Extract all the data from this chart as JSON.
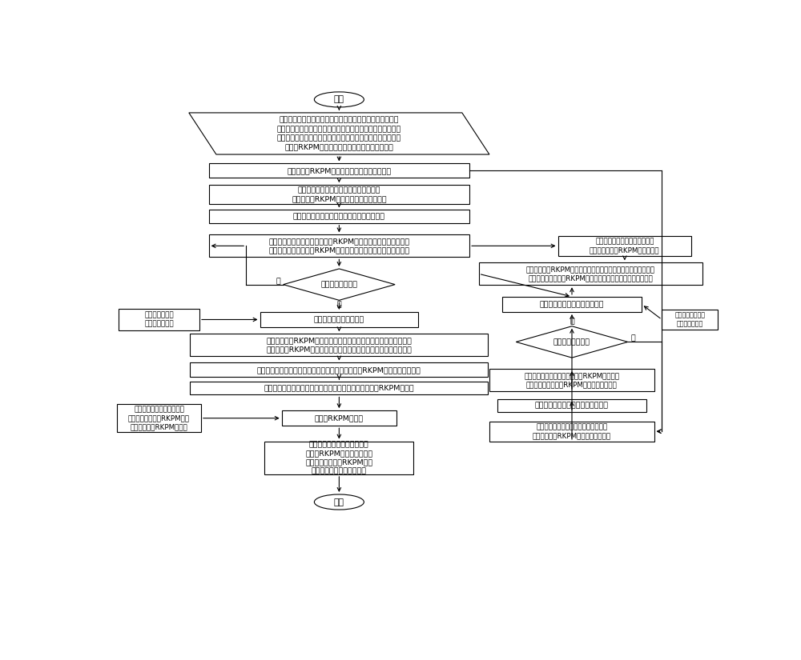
{
  "bg_color": "#ffffff",
  "border_color": "#000000",
  "text_color": "#000000",
  "fig_width": 10.0,
  "fig_height": 8.25,
  "font_size": 6.8,
  "start_text": "开始",
  "end_text": "结束",
  "input_text": "输入各向异性材料属性（主导热系数、主弹性模量、主泊松\n比、剪切模量、主热膨胀系数、热导率正交各向异性因子、热\n膨胀正交各向异性因子、主次泊松比因子、材料方向角等）、\n无网格RKPM计算模型的离散节点信息和边界条件",
  "gen_gauss_text": "生成无网格RKPM积分背景网格并求高斯点信息",
  "find_nodes_disp_text": "找出高斯点影响域内的节点，并利用可视\n性准则处理RKPM热变形位移场的非连续性",
  "calc_shape_disp_text": "计算热变形位移的重构核近似形函数及其导数",
  "build_stiffness_text": "建立各向异性材料结构的无网格RKPM力刚度矩阵和温差载荷列向\n量，并在影响域内完成RKPM力刚度矩阵和温差载荷列向量的组装",
  "diamond_disp_text": "高斯点是否遍历完",
  "penalty_disp_text": "罚函数法处理位\n移本质边界条件",
  "apply_bc_text": "施加力边界条件和力载荷",
  "solve_disp_text": "组建系统总的RKPM力刚度矩阵和力载荷列向量，建立各向异性材料\n结构无网格RKPM热应力离散控制方程并求解节点热变形位移参数值",
  "recover_disp_text": "用各节点影响域内的节点热变形位移参数值求节点的RKPM真实热变形位移值",
  "calc_stress_gauss_text": "用各高斯点影响域内的节点热变形位移参数值求高斯点的RKPM应力值",
  "search_fit_text": "逐个搜索节点影响域内的高\n斯点，用高斯点的RKPM应力\n值拟合节点的RKPM应力值",
  "node_stress_text": "节点的RKPM应力值",
  "post_process_text": "对计算结果进行后处理，包括\n无网格RKPM计算结果输出和\n云图，以及无网格RKPM结果\n和有限元解、参考解的对比",
  "node_temp_right_text": "用各节点影响域内的节点温度参\n数值求高斯点的RKPM真实温度值",
  "build_thermal_sys_text": "组建系统总的RKPM热刚度矩阵和温度载荷列向量，建立各向异性\n材料结构传热无网格RKPM离散控制方程并求解节点温度参数值",
  "apply_other_bc_text": "逐个施加其他类型传热边界条件",
  "penalty_thermal_text": "罚函数法处理第一\n类传热边界条件",
  "diamond_thermal_text": "高斯点是否遍历完",
  "build_thermal_local_text": "建立各向异性材料结构的无网格RKPM热刚度矩\n阵并在影响域内完成RKPM热刚度矩阵的组装",
  "calc_temp_shape_text": "计算温度重构核近似形函数及其导数",
  "find_nodes_temp_text": "找出高斯点影响域内的节点，并利用可\n视性准则处理RKPM温度场的非连续性",
  "yes_text": "是",
  "no_text": "否"
}
